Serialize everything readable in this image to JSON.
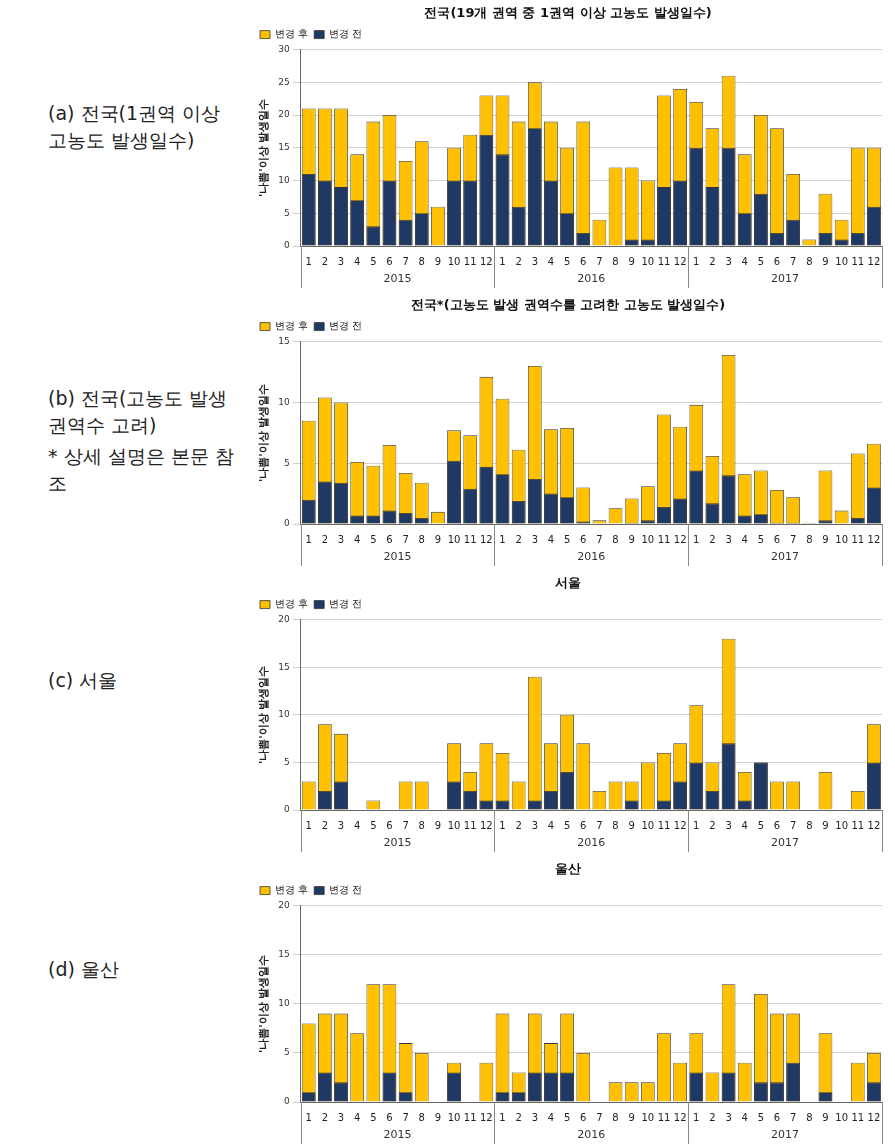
{
  "chart_data": [
    {
      "type": "bar",
      "caption": "(a) 전국(1권역 이상 고농도 발생일수)",
      "title": "전국(19개 권역 중 1권역 이상 고농도 발생일수)",
      "y_label": "'나쁨'이상 발생일수",
      "categories": [
        "1",
        "2",
        "3",
        "4",
        "5",
        "6",
        "7",
        "8",
        "9",
        "10",
        "11",
        "12",
        "1",
        "2",
        "3",
        "4",
        "5",
        "6",
        "7",
        "8",
        "9",
        "10",
        "11",
        "12",
        "1",
        "2",
        "3",
        "4",
        "5",
        "6",
        "7",
        "8",
        "9",
        "10",
        "11",
        "12"
      ],
      "year_labels": [
        "2015",
        "2016",
        "2017"
      ],
      "series": [
        {
          "name": "변경 후",
          "color": "#ffc000",
          "values": [
            21,
            21,
            21,
            14,
            19,
            20,
            13,
            16,
            6,
            15,
            17,
            23,
            23,
            19,
            25,
            19,
            15,
            19,
            4,
            12,
            12,
            10,
            23,
            24,
            22,
            18,
            26,
            14,
            20,
            18,
            11,
            1,
            8,
            4,
            15,
            15
          ]
        },
        {
          "name": "변경 전",
          "color": "#1f3864",
          "values": [
            11,
            10,
            9,
            7,
            3,
            10,
            4,
            5,
            0,
            10,
            10,
            17,
            14,
            6,
            18,
            10,
            5,
            2,
            0,
            0,
            1,
            1,
            9,
            10,
            15,
            9,
            15,
            5,
            8,
            2,
            4,
            0,
            2,
            1,
            2,
            6
          ]
        }
      ],
      "ylim": [
        0,
        30
      ],
      "yticks": [
        0,
        5,
        10,
        15,
        20,
        25,
        30
      ],
      "grid": true,
      "stacked": false,
      "legend": "top-left"
    },
    {
      "type": "bar",
      "caption": "(b) 전국(고농도 발생 권역수 고려)",
      "footnote": "* 상세 설명은 본문 참조",
      "title": "전국*(고농도 발생 권역수를 고려한 고농도 발생일수)",
      "y_label": "'나쁨'이상 발생일수",
      "categories": [
        "1",
        "2",
        "3",
        "4",
        "5",
        "6",
        "7",
        "8",
        "9",
        "10",
        "11",
        "12",
        "1",
        "2",
        "3",
        "4",
        "5",
        "6",
        "7",
        "8",
        "9",
        "10",
        "11",
        "12",
        "1",
        "2",
        "3",
        "4",
        "5",
        "6",
        "7",
        "8",
        "9",
        "10",
        "11",
        "12"
      ],
      "year_labels": [
        "2015",
        "2016",
        "2017"
      ],
      "series": [
        {
          "name": "변경 후",
          "color": "#ffc000",
          "values": [
            8.5,
            10.4,
            10,
            5.1,
            4.8,
            6.5,
            4.2,
            3.4,
            1.0,
            7.7,
            7.3,
            12.1,
            10.3,
            6.1,
            13,
            7.8,
            7.9,
            3.0,
            0.3,
            1.3,
            2.1,
            3.1,
            9,
            8,
            9.8,
            5.6,
            13.9,
            4.1,
            4.4,
            2.8,
            2.2,
            0.1,
            4.4,
            1.1,
            5.8,
            6.6
          ]
        },
        {
          "name": "변경 전",
          "color": "#1f3864",
          "values": [
            2,
            3.5,
            3.4,
            0.7,
            0.7,
            1.1,
            0.9,
            0.5,
            0,
            5.2,
            2.9,
            4.7,
            4.1,
            1.9,
            3.7,
            2.5,
            2.2,
            0.2,
            0,
            0,
            0.1,
            0.3,
            1.4,
            2.1,
            4.4,
            1.7,
            4,
            0.7,
            0.8,
            0.1,
            0.1,
            0,
            0.3,
            0,
            0.5,
            3
          ]
        }
      ],
      "ylim": [
        0,
        15
      ],
      "yticks": [
        0,
        5,
        10,
        15
      ],
      "grid": true,
      "stacked": false,
      "legend": "top-left"
    },
    {
      "type": "bar",
      "caption": "(c) 서울",
      "title": "서울",
      "y_label": "'나쁨'이상 발생일수",
      "categories": [
        "1",
        "2",
        "3",
        "4",
        "5",
        "6",
        "7",
        "8",
        "9",
        "10",
        "11",
        "12",
        "1",
        "2",
        "3",
        "4",
        "5",
        "6",
        "7",
        "8",
        "9",
        "10",
        "11",
        "12",
        "1",
        "2",
        "3",
        "4",
        "5",
        "6",
        "7",
        "8",
        "9",
        "10",
        "11",
        "12"
      ],
      "year_labels": [
        "2015",
        "2016",
        "2017"
      ],
      "series": [
        {
          "name": "변경 후",
          "color": "#ffc000",
          "values": [
            3,
            9,
            8,
            0,
            1,
            0,
            3,
            3,
            0,
            7,
            4,
            7,
            6,
            3,
            14,
            7,
            10,
            7,
            2,
            3,
            3,
            5,
            6,
            7,
            11,
            5,
            18,
            4,
            5,
            3,
            3,
            0,
            4,
            0,
            2,
            9
          ]
        },
        {
          "name": "변경 전",
          "color": "#1f3864",
          "values": [
            0,
            2,
            3,
            0,
            0,
            0,
            0,
            0,
            0,
            3,
            2,
            1,
            1,
            0,
            1,
            2,
            4,
            0,
            0,
            0,
            1,
            0,
            1,
            3,
            5,
            2,
            7,
            1,
            5,
            0,
            0,
            0,
            0,
            0,
            0,
            5
          ]
        }
      ],
      "ylim": [
        0,
        20
      ],
      "yticks": [
        0,
        5,
        10,
        15,
        20
      ],
      "grid": true,
      "stacked": false,
      "legend": "top-left"
    },
    {
      "type": "bar",
      "caption": "(d) 울산",
      "title": "울산",
      "y_label": "'나쁨'이상 발생일수",
      "categories": [
        "1",
        "2",
        "3",
        "4",
        "5",
        "6",
        "7",
        "8",
        "9",
        "10",
        "11",
        "12",
        "1",
        "2",
        "3",
        "4",
        "5",
        "6",
        "7",
        "8",
        "9",
        "10",
        "11",
        "12",
        "1",
        "2",
        "3",
        "4",
        "5",
        "6",
        "7",
        "8",
        "9",
        "10",
        "11",
        "12"
      ],
      "year_labels": [
        "2015",
        "2016",
        "2017"
      ],
      "series": [
        {
          "name": "변경 후",
          "color": "#ffc000",
          "values": [
            8,
            9,
            9,
            7,
            12,
            12,
            6,
            5,
            0,
            4,
            0,
            4,
            9,
            3,
            9,
            6,
            9,
            5,
            0,
            2,
            2,
            2,
            7,
            4,
            7,
            3,
            12,
            4,
            11,
            9,
            9,
            0,
            7,
            0,
            4,
            5
          ]
        },
        {
          "name": "변경 전",
          "color": "#1f3864",
          "values": [
            1,
            3,
            2,
            0,
            0,
            3,
            1,
            0,
            0,
            3,
            0,
            0,
            1,
            1,
            3,
            3,
            3,
            0,
            0,
            0,
            0,
            0,
            0,
            0,
            3,
            0,
            3,
            0,
            2,
            2,
            4,
            0,
            1,
            0,
            0,
            2
          ]
        }
      ],
      "ylim": [
        0,
        20
      ],
      "yticks": [
        0,
        5,
        10,
        15,
        20
      ],
      "grid": true,
      "stacked": false,
      "legend": "top-left"
    }
  ]
}
